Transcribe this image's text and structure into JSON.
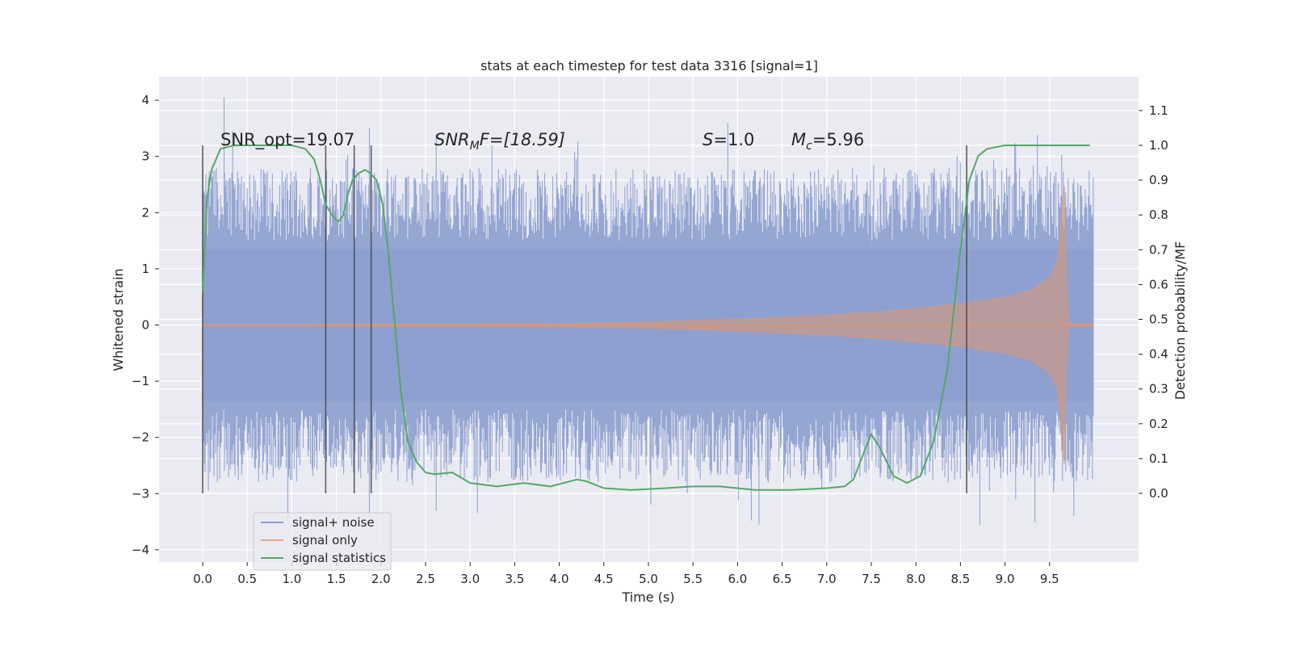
{
  "chart_data": {
    "type": "line",
    "title": "stats at each timestep for test data 3316 [signal=1]",
    "xlabel": "Time (s)",
    "ylabel": "Whitened strain",
    "y2label": "Detection probability/MF",
    "xlim": [
      -0.5,
      10.5
    ],
    "ylim": [
      -4.2,
      4.4
    ],
    "y2lim": [
      -0.19,
      1.2
    ],
    "x_ticks": [
      "0.0",
      "0.5",
      "1.0",
      "1.5",
      "2.0",
      "2.5",
      "3.0",
      "3.5",
      "4.0",
      "4.5",
      "5.0",
      "5.5",
      "6.0",
      "6.5",
      "7.0",
      "7.5",
      "8.0",
      "8.5",
      "9.0",
      "9.5"
    ],
    "y_ticks": [
      "4",
      "3",
      "2",
      "1",
      "0",
      "−1",
      "−2",
      "−3",
      "−4"
    ],
    "y2_ticks": [
      "1.1",
      "1.0",
      "0.9",
      "0.8",
      "0.7",
      "0.6",
      "0.5",
      "0.4",
      "0.3",
      "0.2",
      "0.1",
      "0.0"
    ],
    "grid": true,
    "legend_placement": "lower-left",
    "annotations": {
      "snr_opt": "SNR_opt=19.07",
      "snr_mf_main": "SNR",
      "snr_mf_sub": "M",
      "snr_mf_rest": "F=[18.59]",
      "s_main": "S",
      "s_rest": "=1.0",
      "mc_main": "M",
      "mc_sub": "c",
      "mc_rest": "=5.96"
    },
    "vertical_markers_s": [
      0.0,
      1.38,
      1.7,
      1.89,
      8.57
    ],
    "series": [
      {
        "name": "signal+ noise",
        "color": "#8c9ecf",
        "envelope_x": [
          0.0,
          0.5,
          1.0,
          1.5,
          2.0,
          2.5,
          3.0,
          3.5,
          4.0,
          4.5,
          5.0,
          5.5,
          6.0,
          6.5,
          7.0,
          7.5,
          8.0,
          8.5,
          9.0,
          9.5,
          9.99
        ],
        "core_amplitude": 1.35,
        "typical_peak": 2.5,
        "max_peak": 4.05,
        "min_trough": -3.55
      },
      {
        "name": "signal only",
        "color": "#dd8452",
        "envelope_x": [
          0.0,
          1.0,
          2.0,
          3.0,
          4.0,
          4.5,
          5.0,
          5.5,
          6.0,
          6.5,
          7.0,
          7.5,
          8.0,
          8.5,
          9.0,
          9.3,
          9.5,
          9.6,
          9.65,
          9.67,
          9.7,
          10.0
        ],
        "envelope_amp": [
          0.01,
          0.01,
          0.02,
          0.02,
          0.03,
          0.04,
          0.06,
          0.08,
          0.11,
          0.14,
          0.18,
          0.23,
          0.3,
          0.38,
          0.5,
          0.63,
          0.85,
          1.2,
          2.4,
          2.5,
          0.03,
          0.02
        ]
      },
      {
        "name": "signal statistics",
        "color": "#55a868",
        "x": [
          0.0,
          0.05,
          0.1,
          0.2,
          0.35,
          0.6,
          1.0,
          1.15,
          1.25,
          1.32,
          1.38,
          1.45,
          1.52,
          1.58,
          1.63,
          1.68,
          1.75,
          1.82,
          1.88,
          1.95,
          2.02,
          2.08,
          2.15,
          2.22,
          2.3,
          2.4,
          2.5,
          2.6,
          2.8,
          3.0,
          3.3,
          3.6,
          3.9,
          4.2,
          4.3,
          4.5,
          4.8,
          5.2,
          5.5,
          5.8,
          6.2,
          6.6,
          7.0,
          7.2,
          7.3,
          7.42,
          7.5,
          7.6,
          7.75,
          7.9,
          8.05,
          8.2,
          8.35,
          8.5,
          8.6,
          8.7,
          8.8,
          9.0,
          9.5,
          9.95
        ],
        "values": [
          0.58,
          0.85,
          0.93,
          0.99,
          1.0,
          1.0,
          1.0,
          0.99,
          0.96,
          0.9,
          0.83,
          0.8,
          0.78,
          0.8,
          0.86,
          0.9,
          0.92,
          0.93,
          0.92,
          0.9,
          0.83,
          0.7,
          0.5,
          0.3,
          0.15,
          0.09,
          0.06,
          0.055,
          0.06,
          0.03,
          0.02,
          0.03,
          0.02,
          0.04,
          0.035,
          0.015,
          0.01,
          0.015,
          0.02,
          0.02,
          0.01,
          0.01,
          0.015,
          0.02,
          0.04,
          0.12,
          0.17,
          0.13,
          0.05,
          0.03,
          0.05,
          0.15,
          0.35,
          0.7,
          0.9,
          0.97,
          0.99,
          1.0,
          1.0,
          1.0
        ]
      }
    ]
  }
}
